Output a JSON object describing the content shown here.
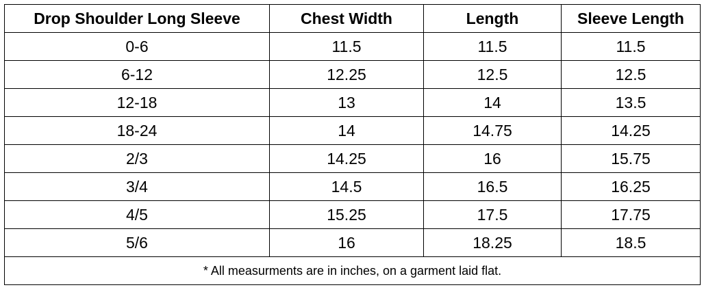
{
  "table": {
    "header": [
      "Drop Shoulder Long Sleeve",
      "Chest Width",
      "Length",
      "Sleeve Length"
    ],
    "rows": [
      [
        "0-6",
        "11.5",
        "11.5",
        "11.5"
      ],
      [
        "6-12",
        "12.25",
        "12.5",
        "12.5"
      ],
      [
        "12-18",
        "13",
        "14",
        "13.5"
      ],
      [
        "18-24",
        "14",
        "14.75",
        "14.25"
      ],
      [
        "2/3",
        "14.25",
        "16",
        "15.75"
      ],
      [
        "3/4",
        "14.5",
        "16.5",
        "16.25"
      ],
      [
        "4/5",
        "15.25",
        "17.5",
        "17.75"
      ],
      [
        "5/6",
        "16",
        "18.25",
        "18.5"
      ]
    ],
    "footnote": "* All measurments are in inches, on a garment laid flat."
  }
}
